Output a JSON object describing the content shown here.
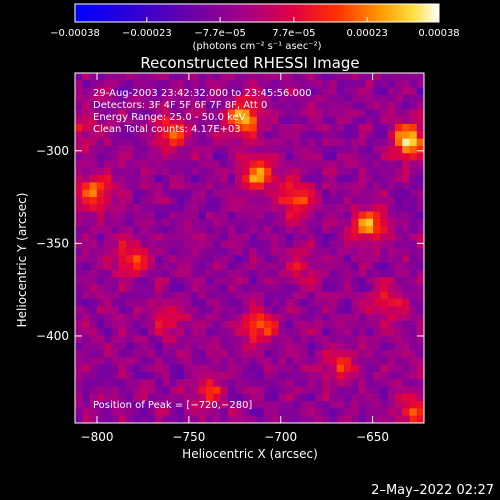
{
  "chart_data": {
    "type": "heatmap",
    "title": "Reconstructed RHESSI Image",
    "xlabel": "Heliocentric X (arcsec)",
    "ylabel": "Heliocentric Y (arcsec)",
    "xlim": [
      -812,
      -622
    ],
    "ylim": [
      -447,
      -258
    ],
    "xticks": [
      -800,
      -750,
      -700,
      -650
    ],
    "yticks": [
      -300,
      -350,
      -400
    ],
    "xtick_labels": [
      "−800",
      "−750",
      "−700",
      "−650"
    ],
    "ytick_labels": [
      "−300",
      "−350",
      "−400"
    ],
    "colorbar": {
      "ticks": [
        -0.00038,
        -0.00023,
        -7.7e-05,
        7.7e-05,
        0.00023,
        0.00038
      ],
      "tick_labels": [
        "−0.00038",
        "−0.00023",
        "−7.7e−05",
        "7.7e−05",
        "0.00023",
        "0.00038"
      ],
      "range": [
        -0.00038,
        0.00038
      ],
      "units": "(photons cm⁻² s⁻¹ asec⁻²)"
    },
    "annotations": [
      "29-Aug-2003 23:42:32.000 to 23:45:56.000",
      "Detectors: 3F 4F 5F 6F 7F 8F, Att 0",
      "Energy Range: 25.0 - 50.0 keV",
      "Clean    Total counts: 4.17E+03"
    ],
    "peak_label": "Position of Peak = [−720,−280]",
    "peak": [
      -720,
      -280
    ],
    "hotspots": [
      {
        "x": -630,
        "y": -295,
        "value": 0.00038
      },
      {
        "x": -720,
        "y": -282,
        "value": 0.00034
      },
      {
        "x": -712,
        "y": -312,
        "value": 0.00031
      },
      {
        "x": -802,
        "y": -322,
        "value": 0.0003
      },
      {
        "x": -652,
        "y": -340,
        "value": 0.00032
      },
      {
        "x": -692,
        "y": -325,
        "value": 0.00026
      },
      {
        "x": -760,
        "y": -290,
        "value": 0.00024
      },
      {
        "x": -782,
        "y": -358,
        "value": 0.00022
      },
      {
        "x": -712,
        "y": -395,
        "value": 0.00024
      },
      {
        "x": -668,
        "y": -415,
        "value": 0.0002
      },
      {
        "x": -642,
        "y": -382,
        "value": 0.00018
      },
      {
        "x": -760,
        "y": -392,
        "value": 0.00016
      },
      {
        "x": -740,
        "y": -430,
        "value": 0.00018
      },
      {
        "x": -628,
        "y": -440,
        "value": 0.00022
      },
      {
        "x": -808,
        "y": -288,
        "value": 0.00014
      },
      {
        "x": -688,
        "y": -362,
        "value": 0.00012
      }
    ]
  },
  "timestamp": "2–May–2022 02:27"
}
